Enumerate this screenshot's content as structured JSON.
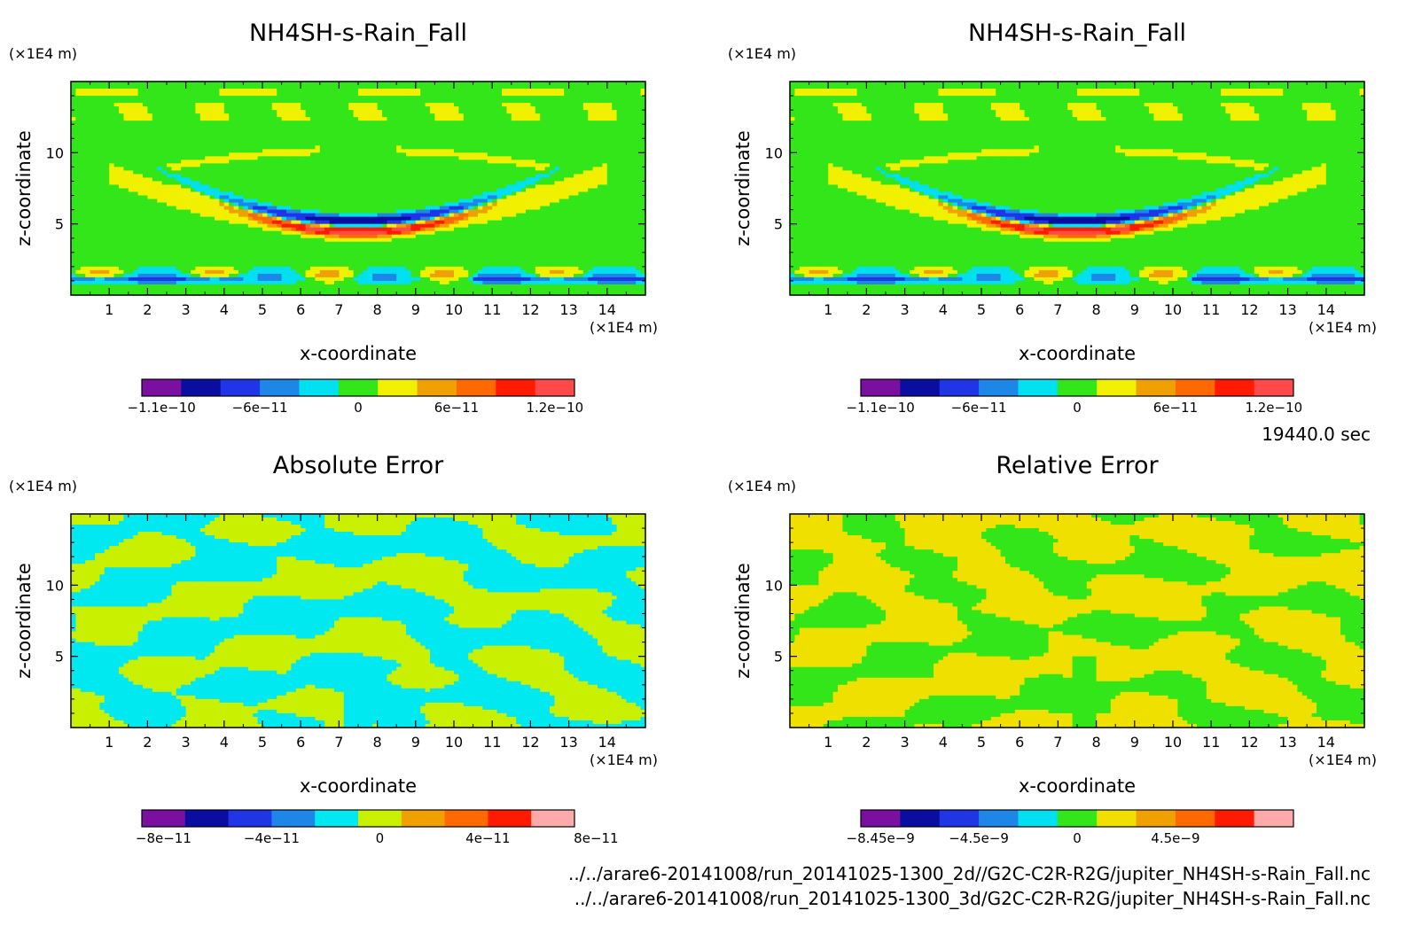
{
  "figure": {
    "time_label": "19440.0 sec",
    "footer_files": [
      "../../arare6-20141008/run_20141025-1300_2d//G2C-C2R-R2G/jupiter_NH4SH-s-Rain_Fall.nc",
      "../../arare6-20141008/run_20141025-1300_3d/G2C-C2R-R2G/jupiter_NH4SH-s-Rain_Fall.nc"
    ],
    "axis_unit": "(×1E4 m)"
  },
  "chart_data": [
    {
      "type": "heatmap",
      "id": "top-left",
      "title": "NH4SH-s-Rain_Fall",
      "xlabel": "x-coordinate",
      "ylabel": "z-coordinate",
      "xunit": "(×1E4 m)",
      "yunit": "(×1E4 m)",
      "xlim": [
        0,
        15
      ],
      "ylim": [
        0,
        15
      ],
      "xticks": [
        1,
        2,
        3,
        4,
        5,
        6,
        7,
        8,
        9,
        10,
        11,
        12,
        13,
        14
      ],
      "yticks": [
        5,
        10
      ],
      "pattern": "field",
      "colorbar": {
        "colors": [
          "#7a0fa0",
          "#0a0ea0",
          "#1f35e6",
          "#1e86e6",
          "#00e0f0",
          "#33e61a",
          "#f0f000",
          "#f0a000",
          "#ff6a00",
          "#ff1a00",
          "#ff4a4a"
        ],
        "tick_labels": [
          "−1.1e−10",
          "−6e−11",
          "0",
          "6e−11",
          "1.2e−10"
        ]
      }
    },
    {
      "type": "heatmap",
      "id": "top-right",
      "title": "NH4SH-s-Rain_Fall",
      "xlabel": "x-coordinate",
      "ylabel": "z-coordinate",
      "xunit": "(×1E4 m)",
      "yunit": "(×1E4 m)",
      "xlim": [
        0,
        15
      ],
      "ylim": [
        0,
        15
      ],
      "xticks": [
        1,
        2,
        3,
        4,
        5,
        6,
        7,
        8,
        9,
        10,
        11,
        12,
        13,
        14
      ],
      "yticks": [
        5,
        10
      ],
      "pattern": "field",
      "colorbar": {
        "colors": [
          "#7a0fa0",
          "#0a0ea0",
          "#1f35e6",
          "#1e86e6",
          "#00e0f0",
          "#33e61a",
          "#f0f000",
          "#f0a000",
          "#ff6a00",
          "#ff1a00",
          "#ff4a4a"
        ],
        "tick_labels": [
          "−1.1e−10",
          "−6e−11",
          "0",
          "6e−11",
          "1.2e−10"
        ]
      }
    },
    {
      "type": "heatmap",
      "id": "bottom-left",
      "title": "Absolute Error",
      "xlabel": "x-coordinate",
      "ylabel": "z-coordinate",
      "xunit": "(×1E4 m)",
      "yunit": "(×1E4 m)",
      "xlim": [
        0,
        15
      ],
      "ylim": [
        0,
        15
      ],
      "xticks": [
        1,
        2,
        3,
        4,
        5,
        6,
        7,
        8,
        9,
        10,
        11,
        12,
        13,
        14
      ],
      "yticks": [
        5,
        10
      ],
      "pattern": "abs",
      "colorbar": {
        "colors": [
          "#7a0fa0",
          "#0a0ea0",
          "#1f35e6",
          "#1e86e6",
          "#00e8f0",
          "#c8f000",
          "#f0a000",
          "#ff6a00",
          "#ff1a00",
          "#ffaaaa"
        ],
        "tick_labels": [
          "−8e−11",
          "−4e−11",
          "0",
          "4e−11",
          "8e−11"
        ]
      }
    },
    {
      "type": "heatmap",
      "id": "bottom-right",
      "title": "Relative Error",
      "xlabel": "x-coordinate",
      "ylabel": "z-coordinate",
      "xunit": "(×1E4 m)",
      "yunit": "(×1E4 m)",
      "xlim": [
        0,
        15
      ],
      "ylim": [
        0,
        15
      ],
      "xticks": [
        1,
        2,
        3,
        4,
        5,
        6,
        7,
        8,
        9,
        10,
        11,
        12,
        13,
        14
      ],
      "yticks": [
        5,
        10
      ],
      "pattern": "rel",
      "colorbar": {
        "colors": [
          "#7a0fa0",
          "#0a0ea0",
          "#1f35e6",
          "#1e86e6",
          "#00e0f0",
          "#33e61a",
          "#f0e000",
          "#f0a000",
          "#ff6a00",
          "#ff1a00",
          "#ffaaaa"
        ],
        "tick_labels": [
          "−8.45e−9",
          "−4.5e−9",
          "0",
          "4.5e−9"
        ]
      }
    }
  ]
}
